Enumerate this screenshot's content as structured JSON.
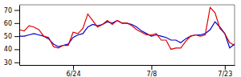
{
  "chart_data": {
    "type": "line",
    "categories": [
      null,
      null,
      null,
      null,
      null,
      null,
      null,
      null,
      null,
      null,
      null,
      "6/24",
      null,
      null,
      null,
      null,
      null,
      null,
      null,
      null,
      null,
      null,
      null,
      null,
      null,
      null,
      null,
      "7/8",
      null,
      null,
      null,
      null,
      null,
      null,
      null,
      null,
      null,
      null,
      null,
      null,
      null,
      null,
      "7/23",
      null,
      null
    ],
    "series": [
      {
        "color": "#dd0000",
        "values": [
          55,
          54,
          58,
          57,
          55,
          50,
          49,
          42,
          41,
          43,
          43,
          53,
          52,
          56,
          67,
          62,
          57,
          59,
          62,
          59,
          62,
          60,
          60,
          58,
          55,
          53,
          51,
          51,
          52,
          47,
          47,
          40,
          41,
          41,
          46,
          50,
          51,
          50,
          51,
          72,
          68,
          56,
          52,
          45,
          43
        ]
      },
      {
        "color": "#0000cc",
        "values": [
          50,
          50,
          51,
          52,
          51,
          50,
          48,
          44,
          42,
          43,
          44,
          49,
          51,
          52,
          57,
          59,
          58,
          59,
          61,
          60,
          62,
          60,
          60,
          59,
          57,
          54,
          52,
          50,
          51,
          50,
          49,
          47,
          47,
          45,
          48,
          50,
          51,
          51,
          52,
          55,
          61,
          57,
          52,
          41,
          44
        ]
      }
    ],
    "ylim": [
      28,
      74
    ],
    "yticks": [
      30,
      40,
      50,
      60,
      70
    ]
  }
}
